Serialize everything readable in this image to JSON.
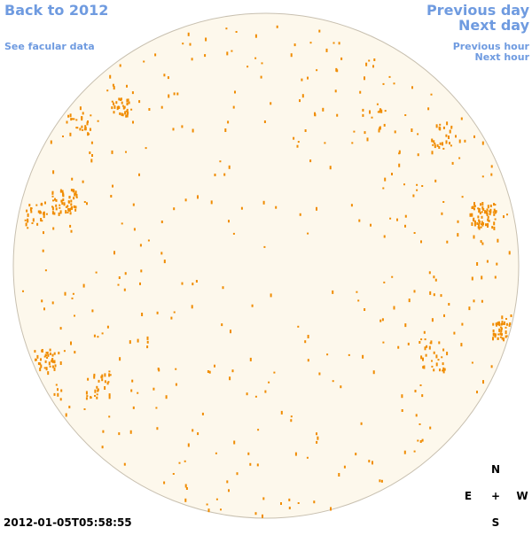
{
  "nav": {
    "back": "Back to 2012",
    "facular": "See facular data",
    "prev_day": "Previous day",
    "next_day": "Next day",
    "prev_hour": "Previous hour",
    "next_hour": "Next hour"
  },
  "compass": {
    "north": "N",
    "east": "E",
    "center": "+",
    "west": "W",
    "south": "S"
  },
  "timestamp": "2012-01-05T05:58:55"
}
